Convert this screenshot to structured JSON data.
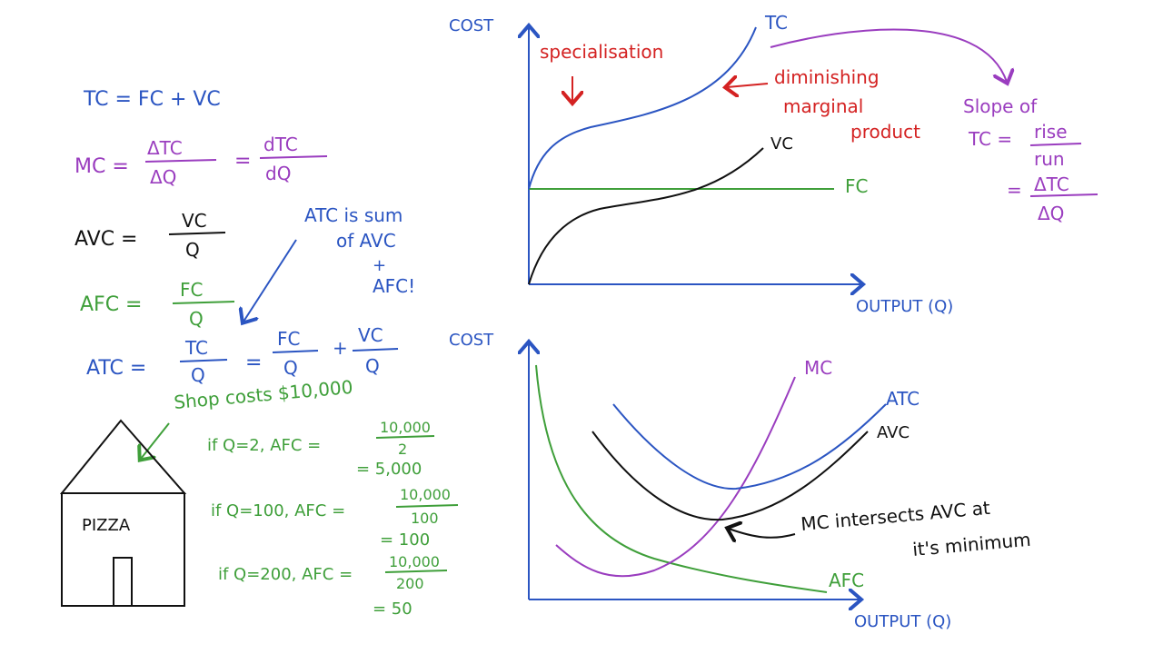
{
  "colors": {
    "blue": "#2b55c2",
    "purple": "#9a3dbf",
    "red": "#d42222",
    "green": "#3f9f3a",
    "black": "#111111"
  },
  "formulas": {
    "tc": "TC = FC + VC",
    "mc_lhs": "MC =",
    "mc_num1": "ΔTC",
    "mc_den1": "ΔQ",
    "mc_eq": "=",
    "mc_num2": "dTC",
    "mc_den2": "dQ",
    "avc_lhs": "AVC =",
    "avc_num": "VC",
    "avc_den": "Q",
    "afc_lhs": "AFC =",
    "afc_num": "FC",
    "afc_den": "Q",
    "atc_lhs": "ATC =",
    "atc_num": "TC",
    "atc_den": "Q",
    "atc_eq": "=",
    "atc_num2": "FC",
    "atc_den2": "Q",
    "atc_plus": "+",
    "atc_num3": "VC",
    "atc_den3": "Q"
  },
  "notes": {
    "atc_note": [
      "ATC is sum",
      "of AVC",
      "+",
      "AFC!"
    ],
    "shop": "Shop costs $10,000",
    "ex1": "if Q=2, AFC =",
    "ex1_num": "10,000",
    "ex1_den": "2",
    "ex1_res": "= 5,000",
    "ex2": "if Q=100, AFC =",
    "ex2_num": "10,000",
    "ex2_den": "100",
    "ex2_res": "= 100",
    "ex3": "if Q=200, AFC =",
    "ex3_num": "10,000",
    "ex3_den": "200",
    "ex3_res": "= 50",
    "pizza": "PIZZA"
  },
  "top_chart": {
    "ylabel": "COST",
    "xlabel": "OUTPUT (Q)",
    "curves": {
      "tc": "TC",
      "vc": "VC",
      "fc": "FC"
    },
    "annotations": {
      "specialisation": "specialisation",
      "dmp": [
        "diminishing",
        "marginal",
        "product"
      ]
    },
    "slope": {
      "line1": "Slope of",
      "lhs": "TC =",
      "num1": "rise",
      "den1": "run",
      "eq": "=",
      "num2": "ΔTC",
      "den2": "ΔQ"
    }
  },
  "bottom_chart": {
    "ylabel": "COST",
    "xlabel": "OUTPUT (Q)",
    "curves": {
      "mc": "MC",
      "atc": "ATC",
      "avc": "AVC",
      "afc": "AFC"
    },
    "annotation": [
      "MC intersects AVC at",
      "it's minimum"
    ]
  }
}
